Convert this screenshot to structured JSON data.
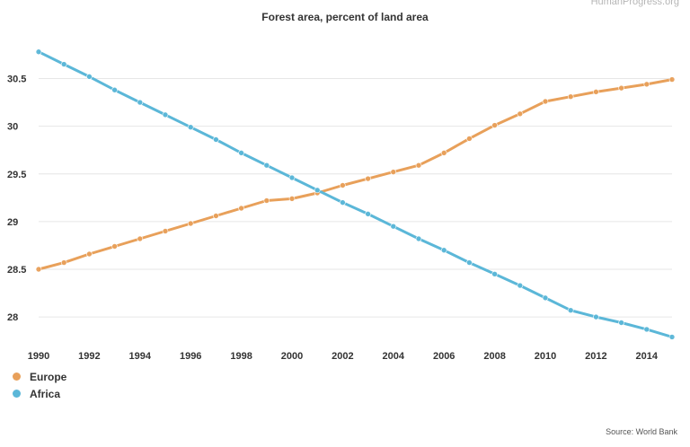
{
  "watermark": "HumanProgress.org",
  "source": "Source: World Bank",
  "chart_data": {
    "type": "line",
    "title": "Forest area, percent of land area",
    "xlabel": "",
    "ylabel": "",
    "x": [
      1990,
      1991,
      1992,
      1993,
      1994,
      1995,
      1996,
      1997,
      1998,
      1999,
      2000,
      2001,
      2002,
      2003,
      2004,
      2005,
      2006,
      2007,
      2008,
      2009,
      2010,
      2011,
      2012,
      2013,
      2014,
      2015
    ],
    "x_ticks": [
      "1990",
      "1992",
      "1994",
      "1996",
      "1998",
      "2000",
      "2002",
      "2004",
      "2006",
      "2008",
      "2010",
      "2012",
      "2014"
    ],
    "y_ticks": [
      "28",
      "28.5",
      "29",
      "29.5",
      "30",
      "30.5"
    ],
    "xlim": [
      1990,
      2015
    ],
    "ylim": [
      27.7,
      30.9
    ],
    "grid": true,
    "legend_position": "bottom-left",
    "series": [
      {
        "name": "Europe",
        "color": "#e8a05a",
        "values": [
          28.5,
          28.57,
          28.66,
          28.74,
          28.82,
          28.9,
          28.98,
          29.06,
          29.14,
          29.22,
          29.24,
          29.3,
          29.38,
          29.45,
          29.52,
          29.59,
          29.72,
          29.87,
          30.01,
          30.13,
          30.26,
          30.31,
          30.36,
          30.4,
          30.44,
          30.49
        ]
      },
      {
        "name": "Africa",
        "color": "#5bb7d8",
        "values": [
          30.78,
          30.65,
          30.52,
          30.38,
          30.25,
          30.12,
          29.99,
          29.86,
          29.72,
          29.59,
          29.46,
          29.33,
          29.2,
          29.08,
          28.95,
          28.82,
          28.7,
          28.57,
          28.45,
          28.33,
          28.2,
          28.07,
          28.0,
          27.94,
          27.87,
          27.79
        ]
      }
    ]
  }
}
